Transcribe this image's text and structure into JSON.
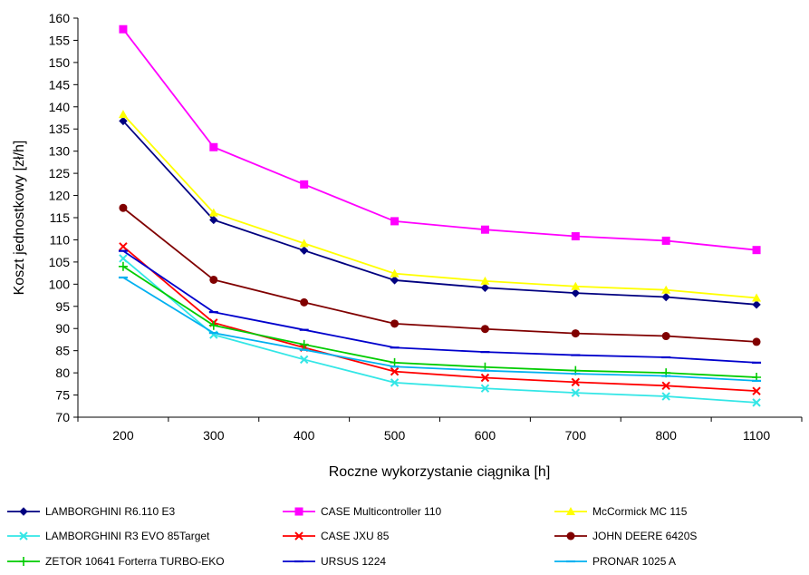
{
  "chart_data": {
    "type": "line",
    "title": "",
    "xlabel": "Roczne wykorzystanie ciągnika [h]",
    "ylabel": "Koszt jednostkowy [zł/h]",
    "categories": [
      "200",
      "300",
      "400",
      "500",
      "600",
      "700",
      "800",
      "1100"
    ],
    "ylim": [
      70,
      160
    ],
    "yticks": [
      70,
      75,
      80,
      85,
      90,
      95,
      100,
      105,
      110,
      115,
      120,
      125,
      130,
      135,
      140,
      145,
      150,
      155,
      160
    ],
    "grid": false,
    "legend_position": "bottom",
    "series": [
      {
        "name": "LAMBORGHINI R6.110  E3",
        "color": "#000080",
        "marker": "diamond",
        "values": [
          136.8,
          114.5,
          107.6,
          100.9,
          99.2,
          98.0,
          97.1,
          95.4
        ]
      },
      {
        "name": "CASE Multicontroller 110",
        "color": "#ff00ff",
        "marker": "square",
        "values": [
          157.5,
          130.9,
          122.5,
          114.2,
          112.3,
          110.8,
          109.8,
          107.7
        ]
      },
      {
        "name": "McCormick MC 115",
        "color": "#ffff00",
        "marker": "triangle",
        "values": [
          138.3,
          116.1,
          109.2,
          102.4,
          100.7,
          99.5,
          98.7,
          96.9
        ]
      },
      {
        "name": "LAMBORGHINI R3 EVO 85Target",
        "color": "#33e6e6",
        "marker": "x",
        "values": [
          105.8,
          88.6,
          83.0,
          77.8,
          76.5,
          75.5,
          74.7,
          73.3
        ]
      },
      {
        "name": "CASE JXU 85",
        "color": "#ff0000",
        "marker": "x",
        "values": [
          108.5,
          91.3,
          85.7,
          80.3,
          78.9,
          77.9,
          77.1,
          75.9
        ]
      },
      {
        "name": "JOHN DEERE  6420S",
        "color": "#800000",
        "marker": "circle",
        "values": [
          117.2,
          101.0,
          95.9,
          91.1,
          89.9,
          88.9,
          88.3,
          87.0
        ]
      },
      {
        "name": "ZETOR 10641 Forterra TURBO-EKO",
        "color": "#00cc00",
        "marker": "plus",
        "values": [
          104.0,
          90.7,
          86.4,
          82.3,
          81.3,
          80.5,
          80.0,
          79.0
        ]
      },
      {
        "name": "URSUS 1224",
        "color": "#0000cc",
        "marker": "dash",
        "values": [
          107.5,
          93.7,
          89.7,
          85.7,
          84.7,
          84.0,
          83.5,
          82.3
        ]
      },
      {
        "name": "PRONAR 1025 A",
        "color": "#00b0f0",
        "marker": "dash",
        "values": [
          101.5,
          89.0,
          85.2,
          81.4,
          80.5,
          79.8,
          79.3,
          78.2
        ]
      }
    ]
  }
}
